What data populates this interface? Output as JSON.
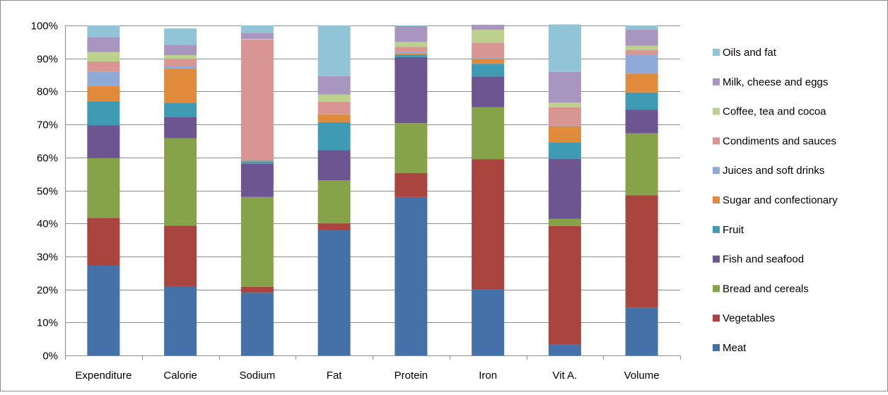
{
  "chart_data": {
    "type": "bar",
    "stacked": true,
    "percent": true,
    "title": "",
    "xlabel": "",
    "ylabel": "",
    "ylim": [
      0,
      100
    ],
    "yticks": [
      "0%",
      "10%",
      "20%",
      "30%",
      "40%",
      "50%",
      "60%",
      "70%",
      "80%",
      "90%",
      "100%"
    ],
    "grid": true,
    "legend_position": "right",
    "categories": [
      "Expenditure",
      "Calorie",
      "Sodium",
      "Fat",
      "Protein",
      "Iron",
      "Vit A.",
      "Volume"
    ],
    "series": [
      {
        "name": "Meat",
        "color": "#4472a8",
        "values": [
          27.2,
          21.0,
          19.0,
          38.0,
          48.0,
          20.0,
          3.3,
          14.5
        ]
      },
      {
        "name": "Vegetables",
        "color": "#a9443f",
        "values": [
          14.5,
          18.3,
          1.8,
          2.0,
          7.3,
          39.5,
          35.9,
          34.0
        ]
      },
      {
        "name": "Bread and cereals",
        "color": "#86a34a",
        "values": [
          18.1,
          26.5,
          27.2,
          13.1,
          15.1,
          15.7,
          2.2,
          18.8
        ]
      },
      {
        "name": "Fish and seafood",
        "color": "#6c5591",
        "values": [
          9.9,
          6.5,
          10.1,
          9.1,
          20.0,
          9.3,
          18.2,
          7.2
        ]
      },
      {
        "name": "Fruit",
        "color": "#3f9ab4",
        "values": [
          7.3,
          4.3,
          0.7,
          8.5,
          0.7,
          3.9,
          5.0,
          5.2
        ]
      },
      {
        "name": "Sugar and confectionary",
        "color": "#e08a3c",
        "values": [
          4.6,
          10.4,
          0.3,
          2.3,
          0.5,
          1.5,
          4.9,
          5.7
        ]
      },
      {
        "name": "Juices and soft drinks",
        "color": "#8faad6",
        "values": [
          4.3,
          0.7,
          0.1,
          0.2,
          0.4,
          0.2,
          0.1,
          5.7
        ]
      },
      {
        "name": "Condiments and sauces",
        "color": "#d89591",
        "values": [
          3.2,
          2.2,
          36.5,
          3.7,
          1.5,
          4.7,
          5.6,
          1.5
        ]
      },
      {
        "name": "Coffee, tea and cocoa",
        "color": "#bcd18e",
        "values": [
          2.8,
          1.1,
          0.2,
          2.2,
          1.5,
          3.9,
          1.4,
          1.3
        ]
      },
      {
        "name": "Milk, cheese and eggs",
        "color": "#a996c0",
        "values": [
          4.6,
          3.1,
          1.9,
          5.5,
          4.8,
          1.5,
          9.3,
          4.8
        ]
      },
      {
        "name": "Oils and fat",
        "color": "#92c4d8",
        "values": [
          3.5,
          5.0,
          2.2,
          15.4,
          0.2,
          0.0,
          14.4,
          1.3
        ]
      }
    ]
  }
}
